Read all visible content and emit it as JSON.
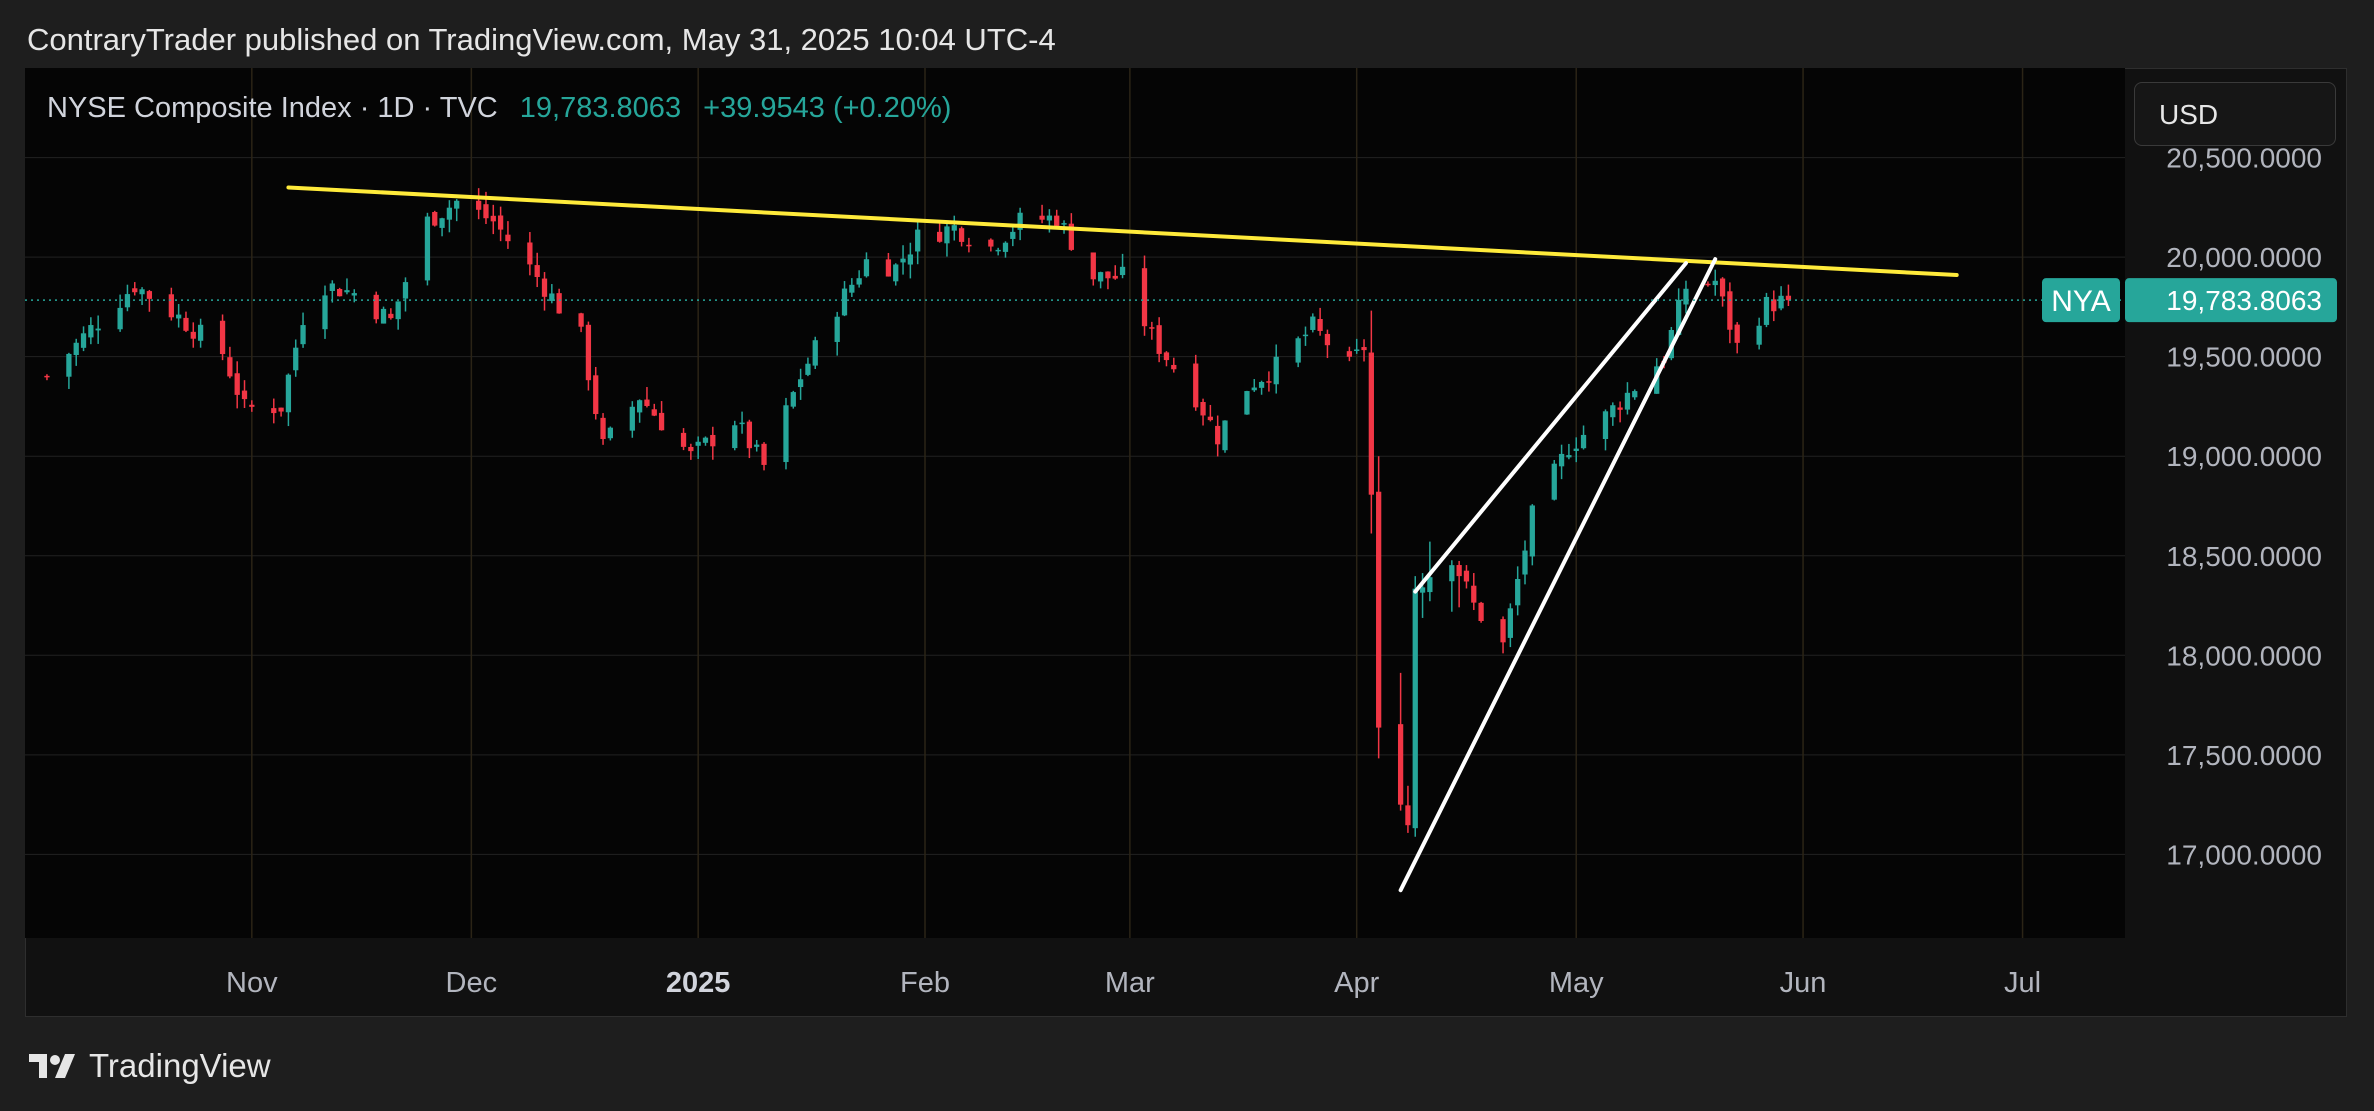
{
  "header": {
    "published": "ContraryTrader published on TradingView.com, May 31, 2025 10:04 UTC-4"
  },
  "legend": {
    "symbol_line": "NYSE Composite Index · 1D · TVC",
    "price": "19,783.8063",
    "change": "+39.9543 (+0.20%)"
  },
  "currency_button": "USD",
  "price_tag": {
    "ticker": "NYA",
    "value": "19,783.8063"
  },
  "footer": {
    "brand": "TradingView"
  },
  "colors": {
    "up": "#26a69a",
    "down": "#f23645",
    "trendline": "#ffeb3b",
    "wedge": "#ffffff",
    "background": "#111111"
  },
  "chart_data": {
    "type": "candlestick",
    "title": "NYSE Composite Index",
    "interval": "1D",
    "source": "TVC",
    "y_ticks": [
      17000,
      17500,
      18000,
      18500,
      19000,
      19500,
      20000,
      20500
    ],
    "y_tick_labels": [
      "17,000.0000",
      "17,500.0000",
      "18,000.0000",
      "18,500.0000",
      "19,000.0000",
      "19,500.0000",
      "20,000.0000",
      "20,500.0000"
    ],
    "ylim": [
      16580,
      20950
    ],
    "x_range": [
      "2024-10-01",
      "2025-07-15"
    ],
    "x_ticks": [
      {
        "date": "2024-11-01",
        "label": "Nov",
        "bold": false
      },
      {
        "date": "2024-12-01",
        "label": "Dec",
        "bold": false
      },
      {
        "date": "2025-01-01",
        "label": "2025",
        "bold": true
      },
      {
        "date": "2025-02-01",
        "label": "Feb",
        "bold": false
      },
      {
        "date": "2025-03-01",
        "label": "Mar",
        "bold": false
      },
      {
        "date": "2025-04-01",
        "label": "Apr",
        "bold": false
      },
      {
        "date": "2025-05-01",
        "label": "May",
        "bold": false
      },
      {
        "date": "2025-06-01",
        "label": "Jun",
        "bold": false
      },
      {
        "date": "2025-07-01",
        "label": "Jul",
        "bold": false
      }
    ],
    "last_price": 19783.8063,
    "waypoints": [
      [
        "2024-10-04",
        19400
      ],
      [
        "2024-10-10",
        19640
      ],
      [
        "2024-10-16",
        19860
      ],
      [
        "2024-10-22",
        19700
      ],
      [
        "2024-10-28",
        19520
      ],
      [
        "2024-10-31",
        19240
      ],
      [
        "2024-11-05",
        19250
      ],
      [
        "2024-11-08",
        19700
      ],
      [
        "2024-11-11",
        19860
      ],
      [
        "2024-11-15",
        19820
      ],
      [
        "2024-11-20",
        19680
      ],
      [
        "2024-11-25",
        20180
      ],
      [
        "2024-11-29",
        20280
      ],
      [
        "2024-12-04",
        20180
      ],
      [
        "2024-12-10",
        19900
      ],
      [
        "2024-12-16",
        19600
      ],
      [
        "2024-12-19",
        19050
      ],
      [
        "2024-12-24",
        19300
      ],
      [
        "2024-12-31",
        19000
      ],
      [
        "2025-01-06",
        19180
      ],
      [
        "2025-01-10",
        18950
      ],
      [
        "2025-01-15",
        19400
      ],
      [
        "2025-01-20",
        19750
      ],
      [
        "2025-01-24",
        19980
      ],
      [
        "2025-01-28",
        19950
      ],
      [
        "2025-01-31",
        20100
      ],
      [
        "2025-02-05",
        20150
      ],
      [
        "2025-02-10",
        20050
      ],
      [
        "2025-02-14",
        20180
      ],
      [
        "2025-02-19",
        20200
      ],
      [
        "2025-02-24",
        19900
      ],
      [
        "2025-02-28",
        19900
      ],
      [
        "2025-03-04",
        19600
      ],
      [
        "2025-03-10",
        19300
      ],
      [
        "2025-03-13",
        19100
      ],
      [
        "2025-03-17",
        19350
      ],
      [
        "2025-03-21",
        19450
      ],
      [
        "2025-03-26",
        19650
      ],
      [
        "2025-03-31",
        19450
      ],
      [
        "2025-04-02",
        19550
      ],
      [
        "2025-04-03",
        18800
      ],
      [
        "2025-04-04",
        17600
      ],
      [
        "2025-04-07",
        17300
      ],
      [
        "2025-04-08",
        17150
      ],
      [
        "2025-04-09",
        18350
      ],
      [
        "2025-04-14",
        18500
      ],
      [
        "2025-04-17",
        18250
      ],
      [
        "2025-04-21",
        18050
      ],
      [
        "2025-04-25",
        18700
      ],
      [
        "2025-04-30",
        19050
      ],
      [
        "2025-05-05",
        19200
      ],
      [
        "2025-05-09",
        19350
      ],
      [
        "2025-05-13",
        19500
      ],
      [
        "2025-05-16",
        19850
      ],
      [
        "2025-05-20",
        19880
      ],
      [
        "2025-05-23",
        19550
      ],
      [
        "2025-05-27",
        19760
      ],
      [
        "2025-05-30",
        19783.8
      ]
    ],
    "annotations": [
      {
        "type": "trendline",
        "color": "yellow",
        "from": [
          "2024-11-06",
          20350
        ],
        "to": [
          "2025-06-22",
          19910
        ]
      },
      {
        "type": "wedge-upper",
        "color": "white",
        "from": [
          "2025-04-09",
          18320
        ],
        "to": [
          "2025-05-16",
          19970
        ]
      },
      {
        "type": "wedge-lower",
        "color": "white",
        "from": [
          "2025-04-07",
          16820
        ],
        "to": [
          "2025-05-20",
          19990
        ]
      }
    ]
  }
}
